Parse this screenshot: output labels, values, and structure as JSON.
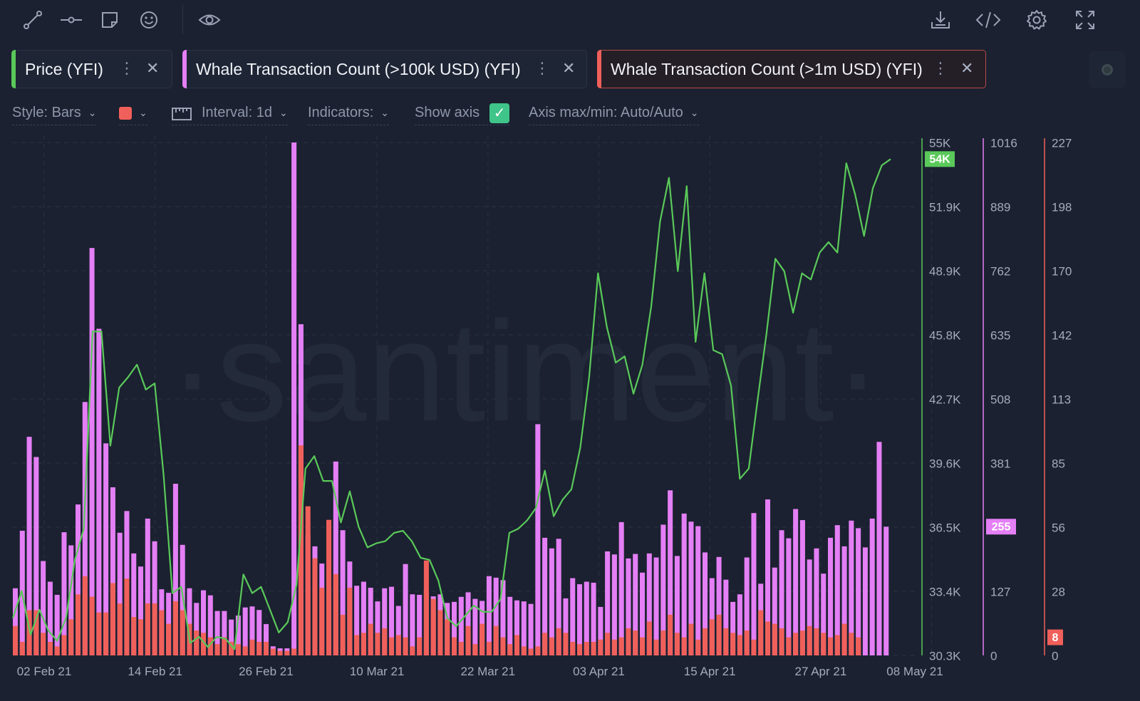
{
  "toolbar": {
    "left_icons": [
      "line-tool-icon",
      "horizontal-line-icon",
      "note-icon",
      "emoji-icon"
    ],
    "eye_icon": "eye-icon",
    "right_icons": [
      "download-icon",
      "code-icon",
      "gear-icon",
      "fullscreen-icon"
    ]
  },
  "tabs": [
    {
      "label": "Price (YFI)",
      "color": "#5ac95a"
    },
    {
      "label": "Whale Transaction Count (>100k USD) (YFI)",
      "color": "#e47ff5"
    },
    {
      "label": "Whale Transaction Count (>1m USD) (YFI)",
      "color": "#f0605a"
    }
  ],
  "settings": {
    "style": "Style: Bars",
    "color": "#f0605a",
    "interval": "Interval: 1d",
    "indicators": "Indicators:",
    "show_axis": "Show axis",
    "axis_maxmin": "Axis max/min: Auto/Auto"
  },
  "chart_data": {
    "type": "bar",
    "watermark": "·santiment·",
    "x_tick_labels": [
      "02 Feb 21",
      "14 Feb 21",
      "26 Feb 21",
      "10 Mar 21",
      "22 Mar 21",
      "03 Apr 21",
      "15 Apr 21",
      "27 Apr 21",
      "08 May 21"
    ],
    "y_axes": [
      {
        "series": "Price (YFI)",
        "ticks": [
          "55K",
          "51.9K",
          "48.9K",
          "45.8K",
          "42.7K",
          "39.6K",
          "36.5K",
          "33.4K",
          "30.3K"
        ],
        "range": [
          30300,
          55000
        ],
        "last_label": "54K",
        "color": "#5ac95a"
      },
      {
        "series": "Whale Transaction Count (>100k USD) (YFI)",
        "ticks": [
          "1016",
          "889",
          "762",
          "635",
          "508",
          "381",
          "255",
          "127",
          "0"
        ],
        "range": [
          0,
          1016
        ],
        "last_label": "255",
        "color": "#e47ff5"
      },
      {
        "series": "Whale Transaction Count (>1m USD) (YFI)",
        "ticks": [
          "227",
          "198",
          "170",
          "142",
          "113",
          "85",
          "56",
          "28",
          "0"
        ],
        "range": [
          0,
          227
        ],
        "last_label": "8",
        "color": "#f0605a"
      }
    ],
    "series": [
      {
        "name": "Price (YFI)",
        "type": "line",
        "values": [
          32100,
          33400,
          31300,
          32500,
          31500,
          31000,
          32100,
          34900,
          36400,
          45900,
          45900,
          40400,
          43200,
          43700,
          44300,
          43100,
          43400,
          39000,
          33300,
          33600,
          30900,
          31200,
          30700,
          31200,
          31100,
          30600,
          34200,
          33300,
          33600,
          32500,
          31400,
          31900,
          33700,
          39300,
          39900,
          38700,
          38700,
          36700,
          38200,
          36500,
          35500,
          35700,
          35800,
          36200,
          36300,
          35800,
          35000,
          34900,
          33900,
          32100,
          31700,
          32200,
          32700,
          32400,
          32400,
          33000,
          36200,
          36400,
          36800,
          37400,
          39200,
          37000,
          37800,
          38300,
          40300,
          43700,
          48700,
          46100,
          44400,
          44700,
          42900,
          44300,
          47100,
          51200,
          53300,
          48800,
          52900,
          45400,
          48700,
          45000,
          44800,
          43300,
          38800,
          39300,
          42600,
          45800,
          49400,
          48800,
          46800,
          48700,
          48400,
          49700,
          50200,
          49700,
          54000,
          52500,
          50500,
          52800,
          53900,
          54200
        ],
        "note": "daily close, read from chart"
      },
      {
        "name": "Whale Transaction Count (>100k USD) (YFI)",
        "type": "bar",
        "values": [
          133,
          247,
          433,
          393,
          187,
          146,
          120,
          244,
          218,
          299,
          502,
          807,
          647,
          420,
          333,
          243,
          286,
          202,
          176,
          271,
          226,
          131,
          124,
          340,
          219,
          133,
          104,
          129,
          119,
          88,
          88,
          71,
          79,
          95,
          97,
          90,
          62,
          18,
          14,
          14,
          1016,
          656,
          238,
          216,
          182,
          136,
          384,
          248,
          186,
          138,
          146,
          134,
          107,
          133,
          136,
          98,
          181,
          121,
          120,
          129,
          117,
          121,
          104,
          106,
          116,
          125,
          112,
          108,
          157,
          154,
          149,
          116,
          109,
          107,
          102,
          458,
          233,
          212,
          231,
          113,
          153,
          141,
          146,
          144,
          96,
          206,
          200,
          264,
          192,
          201,
          164,
          202,
          194,
          259,
          327,
          197,
          281,
          265,
          256,
          204,
          153,
          195,
          150,
          106,
          121,
          194,
          282,
          142,
          309,
          174,
          248,
          232,
          290,
          268,
          190,
          212,
          162,
          233,
          258,
          216,
          267,
          252,
          214,
          271,
          423,
          255
        ]
      },
      {
        "name": "Whale Transaction Count (>1m USD) (YFI)",
        "type": "bar",
        "values": [
          13,
          6,
          20,
          20,
          10,
          6,
          4,
          9,
          16,
          27,
          35,
          26,
          19,
          19,
          32,
          23,
          34,
          17,
          16,
          23,
          23,
          20,
          14,
          24,
          20,
          14,
          11,
          10,
          8,
          5,
          8,
          6,
          5,
          4,
          7,
          6,
          6,
          3,
          2,
          2,
          3,
          93,
          66,
          43,
          30,
          60,
          36,
          18,
          30,
          9,
          10,
          14,
          10,
          12,
          8,
          9,
          8,
          4,
          8,
          42,
          25,
          20,
          16,
          8,
          6,
          13,
          5,
          14,
          6,
          13,
          8,
          5,
          9,
          4,
          3,
          4,
          10,
          8,
          12,
          10,
          6,
          5,
          6,
          6,
          7,
          10,
          7,
          8,
          12,
          11,
          8,
          15,
          7,
          11,
          18,
          10,
          8,
          14,
          7,
          12,
          16,
          18,
          12,
          10,
          9,
          11,
          7,
          20,
          15,
          14,
          12,
          8,
          10,
          11,
          13,
          12,
          10,
          8,
          9,
          14,
          10,
          8
        ]
      }
    ]
  }
}
